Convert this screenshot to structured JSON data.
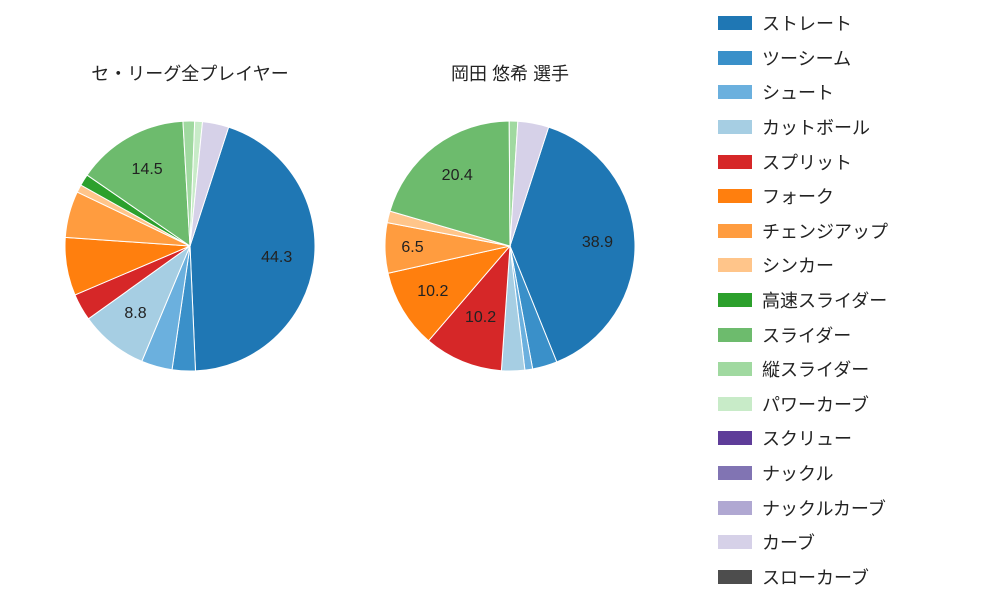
{
  "colors": {
    "ストレート": "#1f77b4",
    "ツーシーム": "#3a90c9",
    "シュート": "#6bb0de",
    "カットボール": "#a6cee3",
    "スプリット": "#d62728",
    "フォーク": "#ff7f0e",
    "チェンジアップ": "#ff9c3f",
    "シンカー": "#ffc58a",
    "高速スライダー": "#2ca02c",
    "スライダー": "#6dbb6d",
    "縦スライダー": "#a0d9a0",
    "パワーカーブ": "#c8ebc8",
    "スクリュー": "#5e3c99",
    "ナックル": "#8174b3",
    "ナックルカーブ": "#b0a8d2",
    "カーブ": "#d6d1e8",
    "スローカーブ": "#4d4d4d"
  },
  "legend_order": [
    "ストレート",
    "ツーシーム",
    "シュート",
    "カットボール",
    "スプリット",
    "フォーク",
    "チェンジアップ",
    "シンカー",
    "高速スライダー",
    "スライダー",
    "縦スライダー",
    "パワーカーブ",
    "スクリュー",
    "ナックル",
    "ナックルカーブ",
    "カーブ",
    "スローカーブ"
  ],
  "charts": [
    {
      "title": "セ・リーグ全プレイヤー",
      "slices": [
        {
          "name": "ストレート",
          "value": 44.3,
          "show_label": true
        },
        {
          "name": "ツーシーム",
          "value": 3.0
        },
        {
          "name": "シュート",
          "value": 4.0
        },
        {
          "name": "カットボール",
          "value": 8.8,
          "show_label": true
        },
        {
          "name": "スプリット",
          "value": 3.5
        },
        {
          "name": "フォーク",
          "value": 7.5
        },
        {
          "name": "チェンジアップ",
          "value": 6.0
        },
        {
          "name": "シンカー",
          "value": 1.0
        },
        {
          "name": "高速スライダー",
          "value": 1.5
        },
        {
          "name": "スライダー",
          "value": 14.5,
          "show_label": true
        },
        {
          "name": "縦スライダー",
          "value": 1.5
        },
        {
          "name": "パワーカーブ",
          "value": 1.0
        },
        {
          "name": "カーブ",
          "value": 3.4
        }
      ]
    },
    {
      "title": "岡田 悠希  選手",
      "slices": [
        {
          "name": "ストレート",
          "value": 38.9,
          "show_label": true
        },
        {
          "name": "ツーシーム",
          "value": 3.2
        },
        {
          "name": "シュート",
          "value": 1.0
        },
        {
          "name": "カットボール",
          "value": 3.0
        },
        {
          "name": "スプリット",
          "value": 10.2,
          "show_label": true,
          "label_r": 0.62
        },
        {
          "name": "フォーク",
          "value": 10.2,
          "show_label": true,
          "label_r": 0.72
        },
        {
          "name": "チェンジアップ",
          "value": 6.5,
          "show_label": true,
          "label_r": 0.78
        },
        {
          "name": "シンカー",
          "value": 1.5
        },
        {
          "name": "スライダー",
          "value": 20.4,
          "show_label": true
        },
        {
          "name": "縦スライダー",
          "value": 1.1
        },
        {
          "name": "カーブ",
          "value": 4.0
        }
      ]
    }
  ],
  "pie": {
    "radius": 125,
    "label_r_default": 0.7,
    "label_fontsize": 16,
    "title_fontsize": 18,
    "start_angle_deg": 72
  }
}
